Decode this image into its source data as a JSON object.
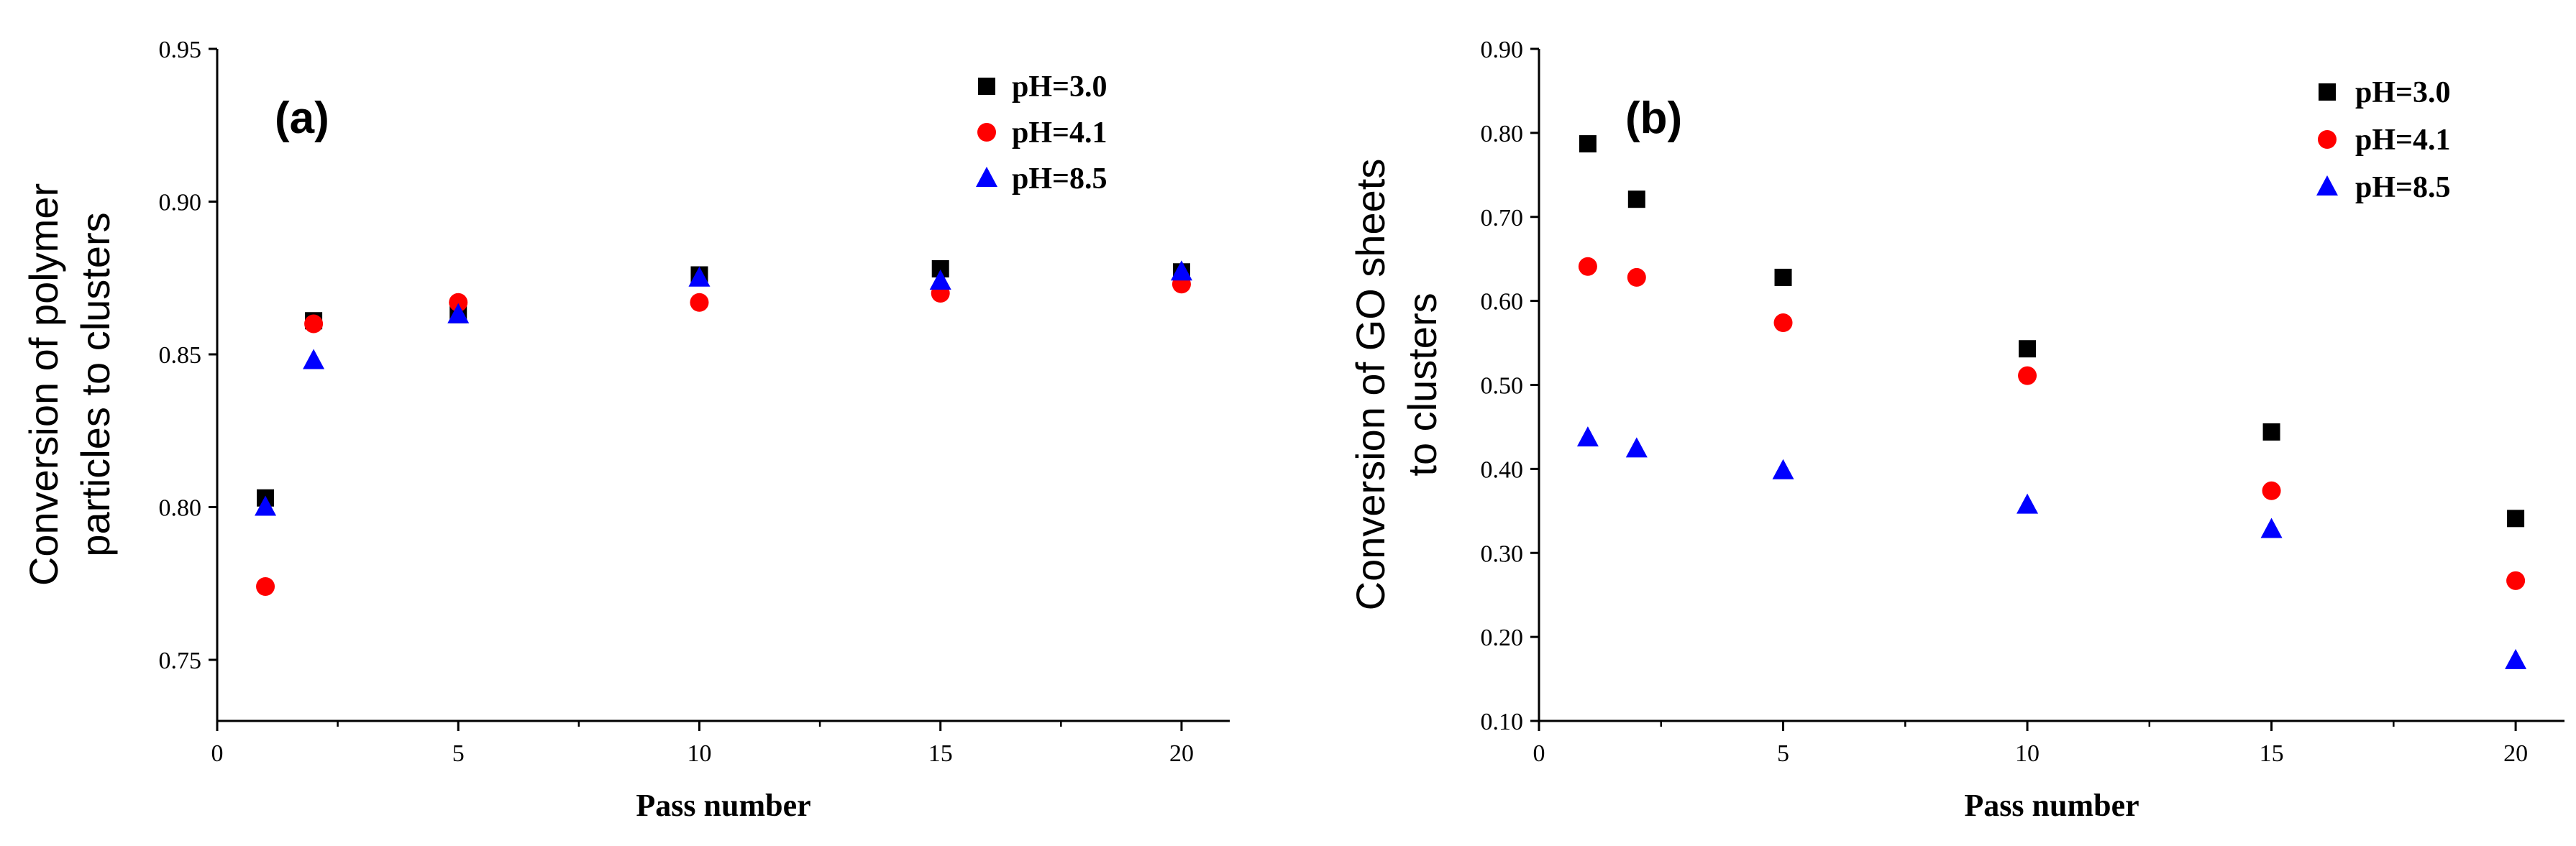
{
  "chart_data": [
    {
      "type": "scatter",
      "panel_label": "(a)",
      "title": "",
      "xlabel": "Pass number",
      "ylabel_lines": [
        "Conversion of polymer",
        "particles to clusters"
      ],
      "xlim": [
        0,
        21
      ],
      "ylim": [
        0.73,
        0.95
      ],
      "xticks": [
        0,
        5,
        10,
        15,
        20
      ],
      "xtick_labels": [
        "0",
        "5",
        "10",
        "15",
        "20"
      ],
      "yticks": [
        0.75,
        0.8,
        0.85,
        0.9,
        0.95
      ],
      "ytick_labels": [
        "0.75",
        "0.80",
        "0.85",
        "0.90",
        "0.95"
      ],
      "legend_position": "top-right",
      "x": [
        1,
        2,
        5,
        10,
        15,
        20
      ],
      "series": [
        {
          "name": "pH=3.0",
          "marker": "square",
          "color": "#000000",
          "values": [
            0.803,
            0.861,
            0.863,
            0.876,
            0.878,
            0.877
          ]
        },
        {
          "name": "pH=4.1",
          "marker": "circle",
          "color": "#ff0000",
          "values": [
            0.774,
            0.86,
            0.867,
            0.867,
            0.87,
            0.873
          ]
        },
        {
          "name": "pH=8.5",
          "marker": "triangle",
          "color": "#0000ff",
          "values": [
            0.8,
            0.848,
            0.863,
            0.875,
            0.874,
            0.877
          ]
        }
      ]
    },
    {
      "type": "scatter",
      "panel_label": "(b)",
      "title": "",
      "xlabel": "Pass number",
      "ylabel_lines": [
        "Conversion of GO sheets",
        "to clusters"
      ],
      "xlim": [
        0,
        21
      ],
      "ylim": [
        0.1,
        0.9
      ],
      "xticks": [
        0,
        5,
        10,
        15,
        20
      ],
      "xtick_labels": [
        "0",
        "5",
        "10",
        "15",
        "20"
      ],
      "yticks": [
        0.1,
        0.2,
        0.3,
        0.4,
        0.5,
        0.6,
        0.7,
        0.8,
        0.9
      ],
      "ytick_labels": [
        "0.10",
        "0.20",
        "0.30",
        "0.40",
        "0.50",
        "0.60",
        "0.70",
        "0.80",
        "0.90"
      ],
      "legend_position": "top-right",
      "x": [
        1,
        2,
        5,
        10,
        15,
        20
      ],
      "series": [
        {
          "name": "pH=3.0",
          "marker": "square",
          "color": "#000000",
          "values": [
            0.787,
            0.721,
            0.628,
            0.543,
            0.444,
            0.341
          ]
        },
        {
          "name": "pH=4.1",
          "marker": "circle",
          "color": "#ff0000",
          "values": [
            0.641,
            0.628,
            0.574,
            0.511,
            0.374,
            0.267
          ]
        },
        {
          "name": "pH=8.5",
          "marker": "triangle",
          "color": "#0000ff",
          "values": [
            0.437,
            0.424,
            0.398,
            0.357,
            0.328,
            0.172
          ]
        }
      ]
    }
  ]
}
